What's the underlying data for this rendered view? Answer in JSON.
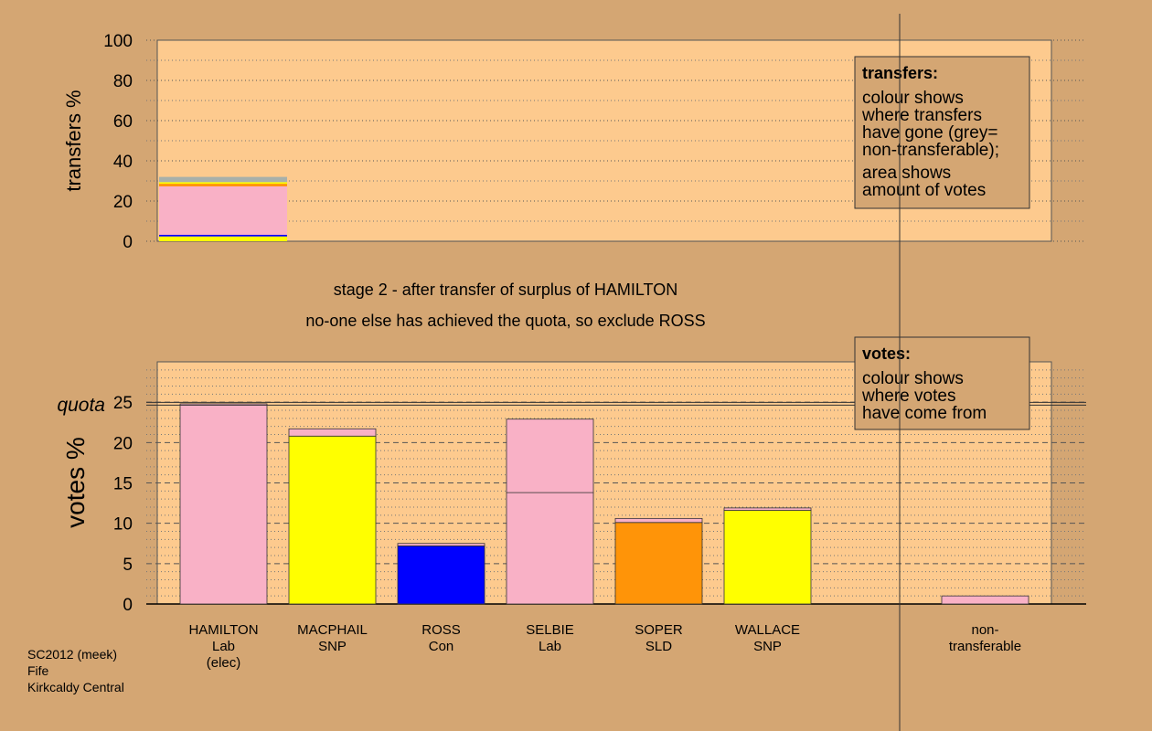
{
  "chart_data": [
    {
      "type": "bar",
      "ylabel": "transfers %",
      "ylim": [
        0,
        100
      ],
      "yticks": [
        0,
        20,
        40,
        60,
        80,
        100
      ],
      "minor_yticks": [
        10,
        30,
        50,
        70,
        90
      ],
      "bars": [
        [
          {
            "color": "#ffff00",
            "value": 2.4
          },
          {
            "color": "#0000ff",
            "value": 0.8
          },
          {
            "color": "#f9b1c6",
            "value": 24.1
          },
          {
            "color": "#ff9408",
            "value": 1.3
          },
          {
            "color": "#ffff00",
            "value": 0.8
          },
          {
            "color": "#a8b0aa",
            "value": 2.6
          }
        ]
      ],
      "legend": {
        "title": "transfers:",
        "paragraphs": [
          [
            "colour shows",
            "where transfers",
            "have gone (grey=",
            "non-transferable);"
          ],
          [
            "area shows",
            "amount of votes"
          ]
        ]
      }
    },
    {
      "type": "bar",
      "ylabel": "votes %",
      "ylim": [
        0,
        30
      ],
      "yticks": [
        0,
        5,
        10,
        15,
        20,
        25
      ],
      "minor_yticks": [
        1,
        2,
        3,
        4,
        6,
        7,
        8,
        9,
        11,
        12,
        13,
        14,
        16,
        17,
        18,
        19,
        21,
        22,
        23,
        24,
        26,
        27,
        28,
        29
      ],
      "quota": {
        "label": "quota",
        "value": 24.8
      },
      "categories": [
        [
          "HAMILTON",
          "Lab",
          "(elec)"
        ],
        [
          "MACPHAIL",
          "SNP"
        ],
        [
          "ROSS",
          "Con"
        ],
        [
          "SELBIE",
          "Lab"
        ],
        [
          "SOPER",
          "SLD"
        ],
        [
          "WALLACE",
          "SNP"
        ],
        null,
        [
          "non-",
          "transferable"
        ]
      ],
      "bars": [
        [
          {
            "color": "#f9b1c6",
            "value": 24.8
          }
        ],
        [
          {
            "color": "#ffff00",
            "value": 20.8
          },
          {
            "color": "#f9b1c6",
            "value": 0.9
          }
        ],
        [
          {
            "color": "#0000ff",
            "value": 7.2
          },
          {
            "color": "#f9b1c6",
            "value": 0.3
          }
        ],
        [
          {
            "color": "#f9b1c6",
            "value": 13.8
          },
          {
            "color": "#f9b1c6",
            "value": 9.1
          }
        ],
        [
          {
            "color": "#ff9408",
            "value": 10.1
          },
          {
            "color": "#f9b1c6",
            "value": 0.5
          }
        ],
        [
          {
            "color": "#ffff00",
            "value": 11.6
          },
          {
            "color": "#f9b1c6",
            "value": 0.3
          }
        ],
        null,
        [
          {
            "color": "#f9b1c6",
            "value": 1.0
          }
        ]
      ],
      "legend": {
        "title": "votes:",
        "paragraphs": [
          [
            "colour shows",
            "where votes",
            "have come from"
          ]
        ]
      }
    }
  ],
  "captions": [
    "stage 2 - after transfer of surplus of HAMILTON",
    "no-one else has achieved the quota, so exclude ROSS"
  ],
  "footer": [
    "SC2012 (meek)",
    "Fife",
    "Kirkcaldy Central"
  ]
}
